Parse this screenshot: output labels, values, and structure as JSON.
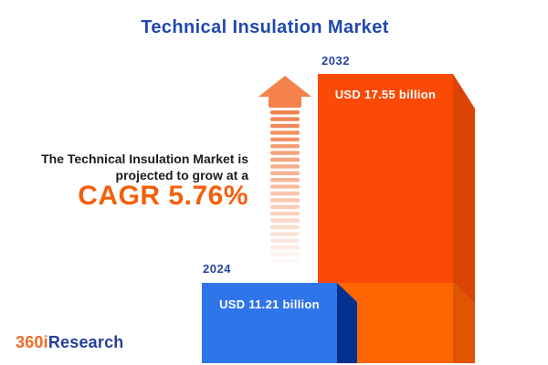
{
  "title": "Technical Insulation Market",
  "annotation": {
    "line1": "The Technical Insulation Market is",
    "line2": "projected to grow at a",
    "cagr": "CAGR 5.76%"
  },
  "logo": {
    "prefix": "360i",
    "suffix": "Research"
  },
  "bars": {
    "year_2024": "2024",
    "year_2032": "2032",
    "value_2024": "USD 11.21 billion",
    "value_2032": "USD 17.55 billion"
  },
  "colors": {
    "title_blue": "#2148AD",
    "year_label_blue": "#27459E",
    "annotation_dark": "#1C1C1C",
    "cagr_orange": "#F4600C",
    "bar2032_front_top": "#FB4A05",
    "bar2032_front_bottom": "#FF6602",
    "bar2032_side_top": "#DC4405",
    "bar2032_side_bottom": "#E05500",
    "bar2024_front": "#2F75EA",
    "bar2024_side": "#04318F",
    "arrow_head": "#F5824B",
    "value_text_white": "#FFFFFF",
    "logo_orange": "#F26A21",
    "logo_blue": "#24409A"
  },
  "arrow": {
    "stripe_count": 23,
    "stripe_color": "#F0814B"
  },
  "chart_data": {
    "type": "bar",
    "title": "Technical Insulation Market",
    "categories": [
      "2024",
      "2032"
    ],
    "values": [
      11.21,
      17.55
    ],
    "unit": "USD billion",
    "value_labels": [
      "USD 11.21 billion",
      "USD 17.55 billion"
    ],
    "cagr_percent": 5.76,
    "annotation": "The Technical Insulation Market is projected to grow at a CAGR 5.76%",
    "xlabel": "",
    "ylabel": "",
    "axis": "none",
    "grid": false,
    "legend_position": "none",
    "bar_colors": [
      "#2F75EA",
      "#FB4A05"
    ],
    "bar_style": "3d-cuboid"
  }
}
